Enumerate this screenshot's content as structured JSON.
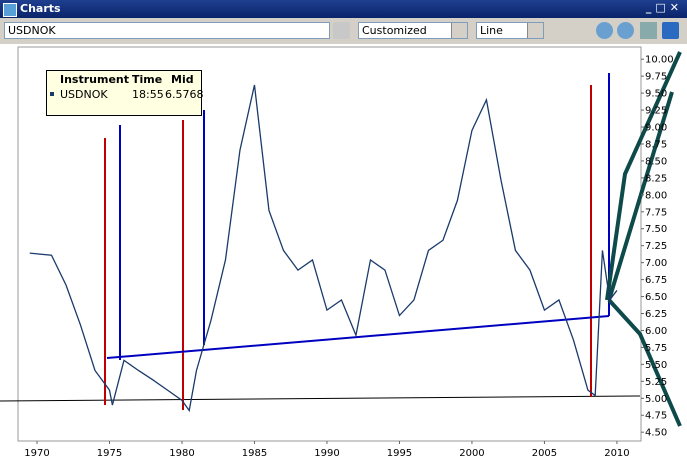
{
  "window": {
    "title": "Charts"
  },
  "toolbar": {
    "symbol": "USDNOK",
    "template": "Customized",
    "style": "Line"
  },
  "legend": {
    "headers": [
      "Instrument",
      "Time",
      "Mid"
    ],
    "time": "18:55",
    "mid": "6.5768"
  },
  "chart_data": {
    "type": "line",
    "x": [
      1969.5,
      1971,
      1972,
      1973,
      1974,
      1975,
      1975.2,
      1976,
      1977,
      1978,
      1979,
      1980,
      1980.5,
      1981,
      1982,
      1983,
      1984,
      1985,
      1986,
      1987,
      1988,
      1989,
      1990,
      1991,
      1992,
      1993,
      1994,
      1995,
      1996,
      1997,
      1998,
      1999,
      2000,
      2001,
      2002,
      2003,
      2004,
      2005,
      2006,
      2007,
      2008,
      2008.5,
      2009,
      2009.5,
      2010
    ],
    "series": [
      {
        "name": "USDNOK",
        "color": "#1a3a6b",
        "values": [
          7.14,
          7.11,
          6.67,
          6.08,
          5.41,
          5.12,
          4.9,
          5.56,
          5.41,
          5.27,
          5.12,
          4.97,
          4.82,
          5.41,
          6.15,
          7.04,
          8.66,
          9.62,
          7.77,
          7.18,
          6.89,
          7.04,
          6.3,
          6.45,
          5.93,
          7.04,
          6.89,
          6.22,
          6.45,
          7.18,
          7.33,
          7.92,
          8.95,
          9.4,
          8.22,
          7.18,
          6.89,
          6.3,
          6.45,
          5.86,
          5.12,
          5.04,
          7.18,
          6.45,
          6.59
        ]
      }
    ],
    "xlim": [
      1968.69,
      2011.66
    ],
    "ylim": [
      4.37,
      10.18
    ],
    "xticks": [
      1970,
      1975,
      1980,
      1985,
      1990,
      1995,
      2000,
      2005,
      2010
    ],
    "yticks": [
      {
        "value": 4.5,
        "label": "4.50"
      },
      4.75,
      {
        "value": 5,
        "label": "5.00"
      },
      5.25,
      {
        "value": 5.5,
        "label": "5.50"
      },
      5.75,
      {
        "value": 6,
        "label": "6.00"
      },
      6.25,
      {
        "value": 6.5,
        "label": "6.50"
      },
      6.75,
      {
        "value": 7,
        "label": "7.00"
      },
      7.25,
      {
        "value": 7.5,
        "label": "7.50"
      },
      7.75,
      {
        "value": 8,
        "label": "8.00"
      },
      8.25,
      {
        "value": 8.5,
        "label": "8.50"
      },
      8.75,
      {
        "value": 9,
        "label": "9.00"
      },
      9.25,
      {
        "value": 9.5,
        "label": "9.50"
      },
      9.75,
      {
        "value": 10,
        "label": "10.00"
      }
    ]
  }
}
